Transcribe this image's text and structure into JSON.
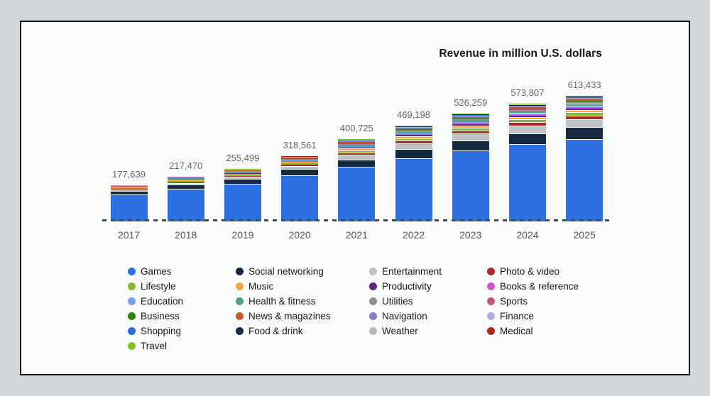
{
  "title": "Revenue in million U.S. dollars",
  "chart_data": {
    "type": "bar",
    "stacked": true,
    "unit": "million U.S. dollars",
    "grid": false,
    "baseline_style": "dashed",
    "x": [
      "2017",
      "2018",
      "2019",
      "2020",
      "2021",
      "2022",
      "2023",
      "2024",
      "2025"
    ],
    "totals": [
      177639,
      217470,
      255499,
      318561,
      400725,
      469198,
      526259,
      573807,
      613433
    ],
    "total_labels": [
      "177,639",
      "217,470",
      "255,499",
      "318,561",
      "400,725",
      "469,198",
      "526,259",
      "573,807",
      "613,433"
    ],
    "series": [
      {
        "name": "Games",
        "color": "#2d6fdf",
        "values": [
          132500,
          158000,
          182000,
          224000,
          265000,
          309000,
          345500,
          376500,
          402000
        ]
      },
      {
        "name": "Social networking",
        "color": "#152a41",
        "values": [
          16500,
          20500,
          24500,
          31000,
          37500,
          44000,
          49500,
          53500,
          57000
        ]
      },
      {
        "name": "Entertainment",
        "color": "#bfc2c5",
        "values": [
          7000,
          9200,
          11500,
          15500,
          24500,
          29500,
          34000,
          37500,
          40500
        ]
      },
      {
        "name": "Photo & video",
        "color": "#ab2a21",
        "values": [
          2600,
          3600,
          4800,
          6500,
          10000,
          12500,
          14500,
          16500,
          18000
        ]
      },
      {
        "name": "Lifestyle",
        "color": "#8ab82a",
        "values": [
          3200,
          4200,
          5200,
          6500,
          9500,
          11000,
          12300,
          13300,
          14200
        ]
      },
      {
        "name": "Music",
        "color": "#f0a73c",
        "values": [
          2800,
          3700,
          4600,
          5800,
          8500,
          10000,
          11200,
          12100,
          12900
        ]
      },
      {
        "name": "Productivity",
        "color": "#5f2383",
        "values": [
          1200,
          1700,
          2200,
          2900,
          4500,
          5300,
          6000,
          6600,
          7100
        ]
      },
      {
        "name": "Books & reference",
        "color": "#cd55d3",
        "values": [
          1100,
          1500,
          1900,
          2500,
          3800,
          4400,
          4900,
          5300,
          5700
        ]
      },
      {
        "name": "Education",
        "color": "#7aa3e6",
        "values": [
          1500,
          2100,
          2700,
          3500,
          5500,
          6400,
          7200,
          7900,
          8500
        ]
      },
      {
        "name": "Health & fitness",
        "color": "#4ba186",
        "values": [
          1300,
          1900,
          2500,
          3300,
          5200,
          6100,
          6900,
          7600,
          8100
        ]
      },
      {
        "name": "Utilities",
        "color": "#8e9194",
        "values": [
          1400,
          1900,
          2400,
          3000,
          4600,
          5400,
          6000,
          6500,
          7000
        ]
      },
      {
        "name": "Sports",
        "color": "#c25572",
        "values": [
          900,
          1200,
          1500,
          1900,
          3000,
          3500,
          3900,
          4200,
          4500
        ]
      },
      {
        "name": "Business",
        "color": "#357f0a",
        "values": [
          1000,
          1400,
          1700,
          2100,
          3200,
          3700,
          4100,
          4400,
          4700
        ]
      },
      {
        "name": "News & magazines",
        "color": "#c75b28",
        "values": [
          1100,
          1400,
          1700,
          2100,
          3100,
          3600,
          4000,
          4300,
          4600
        ]
      },
      {
        "name": "Navigation",
        "color": "#8b79ca",
        "values": [
          700,
          900,
          1100,
          1400,
          2200,
          2500,
          2800,
          3000,
          3200
        ]
      },
      {
        "name": "Finance",
        "color": "#b3a8e0",
        "values": [
          800,
          1000,
          1300,
          1700,
          2600,
          3000,
          3400,
          3700,
          4000
        ]
      },
      {
        "name": "Shopping",
        "color": "#2a6ce0",
        "values": [
          600,
          800,
          1000,
          1300,
          2100,
          2500,
          2800,
          3000,
          3200
        ]
      },
      {
        "name": "Food & drink",
        "color": "#132c44",
        "values": [
          500,
          700,
          900,
          1200,
          2000,
          2400,
          2700,
          2900,
          3100
        ]
      },
      {
        "name": "Weather",
        "color": "#b7babd",
        "values": [
          400,
          500,
          600,
          800,
          1300,
          1500,
          1600,
          1700,
          1800
        ]
      },
      {
        "name": "Medical",
        "color": "#b1241c",
        "values": [
          300,
          400,
          500,
          600,
          1000,
          1200,
          1400,
          1500,
          1600
        ]
      },
      {
        "name": "Travel",
        "color": "#84c12d",
        "values": [
          239,
          870,
          899,
          961,
          1625,
          1698,
          1559,
          1807,
          1733
        ]
      }
    ]
  },
  "legend": {
    "columns": [
      {
        "items": [
          "Games",
          "Lifestyle",
          "Education",
          "Business",
          "Shopping",
          "Travel"
        ]
      },
      {
        "items": [
          "Social networking",
          "Music",
          "Health & fitness",
          "News & magazines",
          "Food & drink"
        ]
      },
      {
        "items": [
          "Entertainment",
          "Productivity",
          "Utilities",
          "Navigation",
          "Weather"
        ]
      },
      {
        "items": [
          "Photo & video",
          "Books & reference",
          "Sports",
          "Finance",
          "Medical"
        ]
      }
    ]
  }
}
